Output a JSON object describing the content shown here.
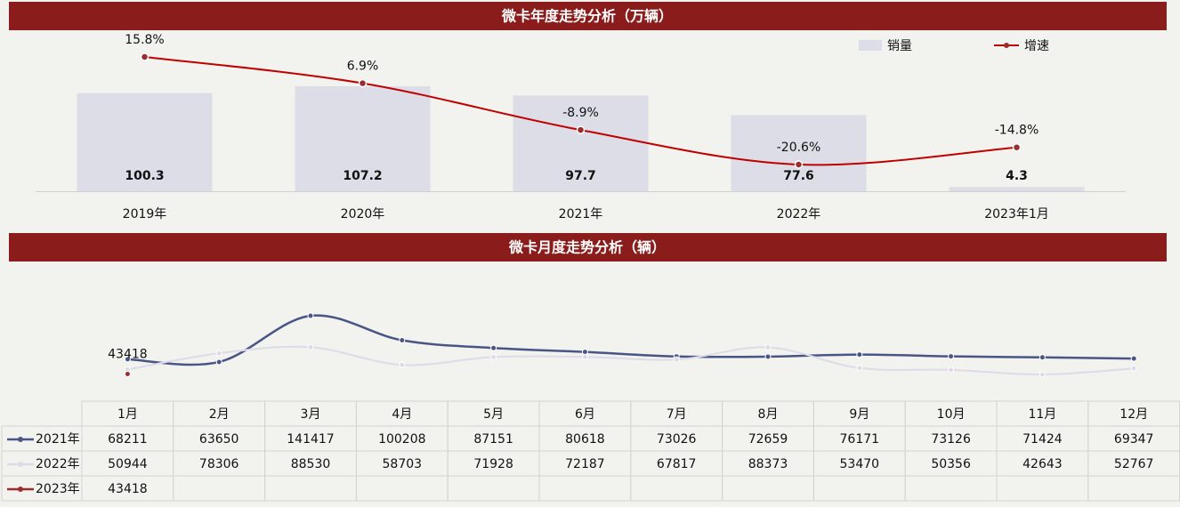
{
  "chart_data": [
    {
      "type": "combo",
      "title": "微卡年度走势分析（万辆）",
      "categories": [
        "2019年",
        "2020年",
        "2021年",
        "2022年",
        "2023年1月"
      ],
      "series": [
        {
          "name": "销量",
          "color": "#dcdde6",
          "values": [
            100.3,
            107.2,
            97.7,
            77.6,
            4.3
          ]
        },
        {
          "name": "增速",
          "color": "#c00000",
          "values": [
            15.8,
            6.9,
            -8.9,
            -20.6,
            -14.8
          ],
          "value_labels": [
            "15.8%",
            "6.9%",
            "-8.9%",
            "-20.6%",
            "-14.8%"
          ]
        }
      ]
    },
    {
      "type": "line",
      "title": "微卡月度走势分析（辆）",
      "categories": [
        "1月",
        "2月",
        "3月",
        "4月",
        "5月",
        "6月",
        "7月",
        "8月",
        "9月",
        "10月",
        "11月",
        "12月"
      ],
      "series": [
        {
          "name": "2021年",
          "color": "#4a5585",
          "values": [
            68211,
            63650,
            141417,
            100208,
            87151,
            80618,
            73026,
            72659,
            76171,
            73126,
            71424,
            69347
          ]
        },
        {
          "name": "2022年",
          "color": "#dcdce8",
          "values": [
            50944,
            78306,
            88530,
            58703,
            71928,
            72187,
            67817,
            88373,
            53470,
            50356,
            42643,
            52767
          ]
        },
        {
          "name": "2023年",
          "color": "#9b2d30",
          "values": [
            43418,
            null,
            null,
            null,
            null,
            null,
            null,
            null,
            null,
            null,
            null,
            null
          ]
        }
      ]
    }
  ]
}
